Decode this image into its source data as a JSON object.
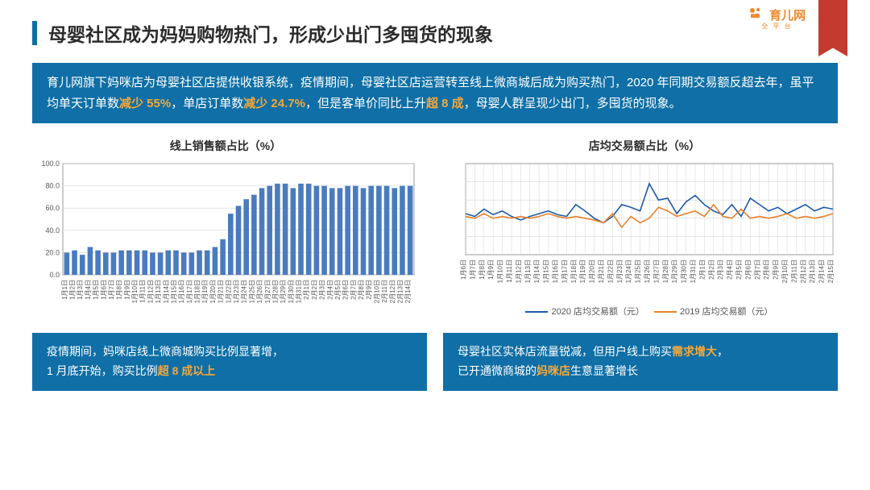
{
  "logo": {
    "text": "育儿网",
    "sub": "全 平 台"
  },
  "title": "母婴社区成为妈妈购物热门，形成少出门多囤货的现象",
  "summary": {
    "p1": "育儿网旗下妈咪店为母婴社区店提供收银系统，疫情期间，母婴社区店运营转至线上微商城后成为购买热门，2020 年同期交易额反超去年，虽平均单天订单数",
    "h1": "减少 55%",
    "p2": "，单店订单数",
    "h2": "减少 24.7%",
    "p3": "，但是客单价同比上升",
    "h3": "超 8 成",
    "p4": "，母婴人群呈现少出门，多囤货的现象。"
  },
  "bar_chart": {
    "title": "线上销售额占比（%）",
    "type": "bar",
    "categories": [
      "1月1日",
      "1月2日",
      "1月3日",
      "1月4日",
      "1月5日",
      "1月6日",
      "1月7日",
      "1月8日",
      "1月9日",
      "1月10日",
      "1月11日",
      "1月12日",
      "1月13日",
      "1月14日",
      "1月15日",
      "1月16日",
      "1月17日",
      "1月18日",
      "1月19日",
      "1月20日",
      "1月21日",
      "1月22日",
      "1月23日",
      "1月24日",
      "1月25日",
      "1月26日",
      "1月27日",
      "1月28日",
      "1月29日",
      "1月30日",
      "1月31日",
      "2月1日",
      "2月2日",
      "2月3日",
      "2月4日",
      "2月5日",
      "2月6日",
      "2月7日",
      "2月8日",
      "2月9日",
      "2月10日",
      "2月11日",
      "2月12日",
      "2月13日",
      "2月14日"
    ],
    "values": [
      20,
      22,
      18,
      25,
      22,
      20,
      20,
      22,
      22,
      22,
      22,
      20,
      20,
      22,
      22,
      20,
      20,
      22,
      22,
      25,
      32,
      55,
      62,
      68,
      72,
      78,
      80,
      82,
      82,
      78,
      82,
      82,
      80,
      80,
      78,
      78,
      80,
      80,
      78,
      80,
      80,
      80,
      78,
      80,
      80
    ],
    "bar_color": "#4a7bbf",
    "border_color": "#9a9a9a",
    "grid_color": "#cccccc",
    "ylim": [
      0,
      100
    ],
    "ytick_step": 20,
    "axis_fontsize": 8
  },
  "line_chart": {
    "title": "店均交易额占比（%）",
    "type": "line",
    "categories": [
      "1月6日",
      "1月7日",
      "1月8日",
      "1月9日",
      "1月10日",
      "1月11日",
      "1月12日",
      "1月13日",
      "1月14日",
      "1月15日",
      "1月16日",
      "1月17日",
      "1月18日",
      "1月19日",
      "1月20日",
      "1月21日",
      "1月22日",
      "1月23日",
      "1月24日",
      "1月25日",
      "1月26日",
      "1月27日",
      "1月28日",
      "1月29日",
      "1月30日",
      "1月31日",
      "2月1日",
      "2月2日",
      "2月3日",
      "2月4日",
      "2月5日",
      "2月6日",
      "2月7日",
      "2月8日",
      "2月9日",
      "2月10日",
      "2月11日",
      "2月12日",
      "2月13日",
      "2月14日",
      "2月15日"
    ],
    "series": [
      {
        "name": "2020 店均交易额（元）",
        "color": "#1e5ba6",
        "values": [
          45,
          42,
          50,
          44,
          48,
          42,
          38,
          42,
          45,
          48,
          44,
          42,
          55,
          48,
          40,
          35,
          42,
          55,
          52,
          48,
          78,
          60,
          62,
          45,
          58,
          65,
          55,
          48,
          44,
          55,
          42,
          62,
          55,
          48,
          52,
          45,
          50,
          55,
          48,
          52,
          50
        ]
      },
      {
        "name": "2019 店均交易额（元）",
        "color": "#e8822e",
        "values": [
          42,
          40,
          45,
          40,
          42,
          40,
          42,
          40,
          42,
          45,
          42,
          40,
          42,
          40,
          38,
          35,
          45,
          30,
          42,
          35,
          40,
          52,
          48,
          42,
          45,
          48,
          42,
          55,
          42,
          40,
          50,
          40,
          42,
          40,
          42,
          45,
          40,
          42,
          40,
          42,
          45
        ]
      }
    ],
    "ylim": [
      0,
      100
    ],
    "grid_color": "#cccccc",
    "border_color": "#9a9a9a",
    "line_width": 1.6,
    "axis_fontsize": 8
  },
  "footnotes": {
    "left": {
      "p1": "疫情期间，妈咪店线上微商城购买比例显著增，",
      "p2a": "1 月底开始，购买比例",
      "h2": "超 8 成以上"
    },
    "right": {
      "p1a": "母婴社区实体店流量锐减，但用户线上购买",
      "h1": "需求增大",
      "p1b": "，",
      "p2a": "已开通微商城的",
      "h2": "妈咪店",
      "p2b": "生意显著增长"
    }
  },
  "colors": {
    "brand_blue": "#0f6fa6",
    "accent_orange": "#f5a83a",
    "ribbon_red": "#c43a2e",
    "logo_orange": "#f08a2e"
  }
}
